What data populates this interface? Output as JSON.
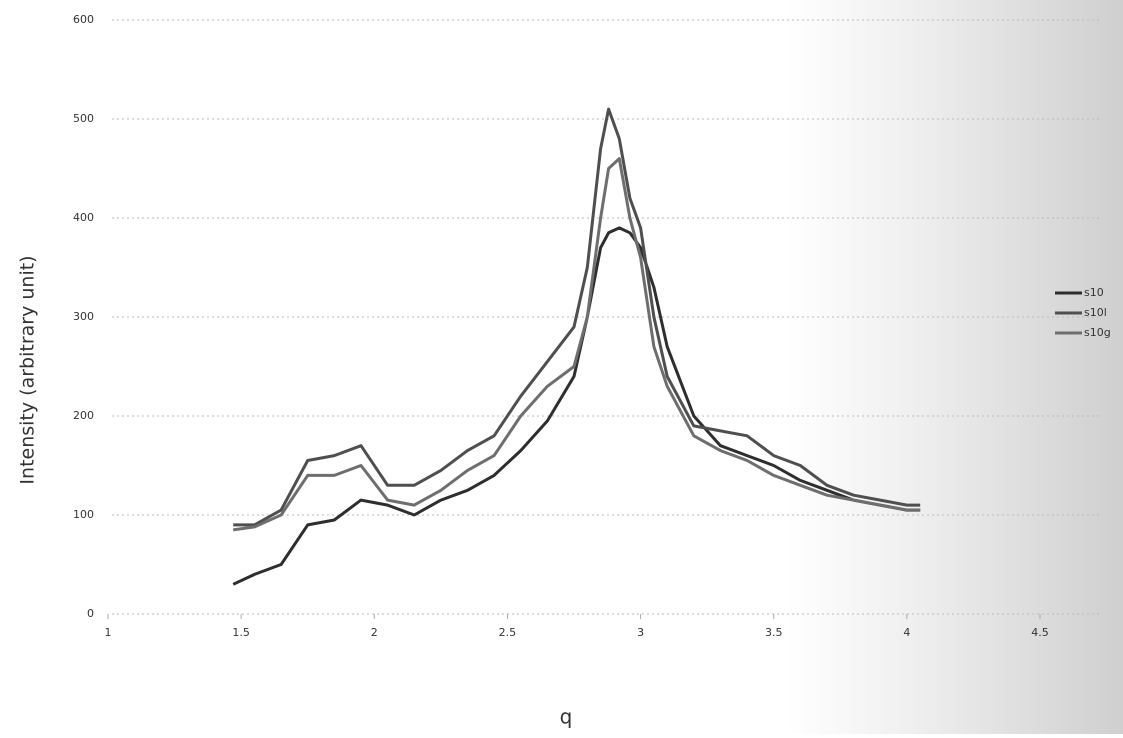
{
  "chart_data": {
    "type": "line",
    "x_label": "q",
    "y_label": "Intensity (arbitrary unit)",
    "x": [
      1.47,
      1.55,
      1.65,
      1.75,
      1.85,
      1.95,
      2.05,
      2.15,
      2.25,
      2.35,
      2.45,
      2.55,
      2.65,
      2.75,
      2.8,
      2.85,
      2.88,
      2.92,
      2.96,
      3.0,
      3.05,
      3.1,
      3.2,
      3.3,
      3.4,
      3.5,
      3.6,
      3.7,
      3.8,
      3.9,
      4.0,
      4.05
    ],
    "series": [
      {
        "name": "s10",
        "color": "#2e2e2e",
        "values": [
          30,
          40,
          50,
          90,
          95,
          115,
          110,
          100,
          115,
          125,
          140,
          165,
          195,
          240,
          300,
          370,
          385,
          390,
          385,
          370,
          330,
          270,
          200,
          170,
          160,
          150,
          135,
          125,
          115,
          110,
          105,
          105
        ]
      },
      {
        "name": "s10l",
        "color": "#4f4f4f",
        "values": [
          90,
          90,
          105,
          155,
          160,
          170,
          130,
          130,
          145,
          165,
          180,
          220,
          255,
          290,
          350,
          470,
          510,
          480,
          420,
          390,
          300,
          240,
          190,
          185,
          180,
          160,
          150,
          130,
          120,
          115,
          110,
          110
        ]
      },
      {
        "name": "s10g",
        "color": "#6e6e6e",
        "values": [
          85,
          88,
          100,
          140,
          140,
          150,
          115,
          110,
          125,
          145,
          160,
          200,
          230,
          250,
          300,
          400,
          450,
          460,
          400,
          360,
          270,
          230,
          180,
          165,
          155,
          140,
          130,
          120,
          115,
          110,
          105,
          105
        ]
      }
    ],
    "xlim": [
      1,
      4.5
    ],
    "xticks": [
      1,
      1.5,
      2,
      2.5,
      3,
      3.5,
      4,
      4.5
    ],
    "ylim": [
      0,
      600
    ],
    "yticks": [
      0,
      100,
      200,
      300,
      400,
      500,
      600
    ],
    "grid": true,
    "legend_position": "right"
  }
}
